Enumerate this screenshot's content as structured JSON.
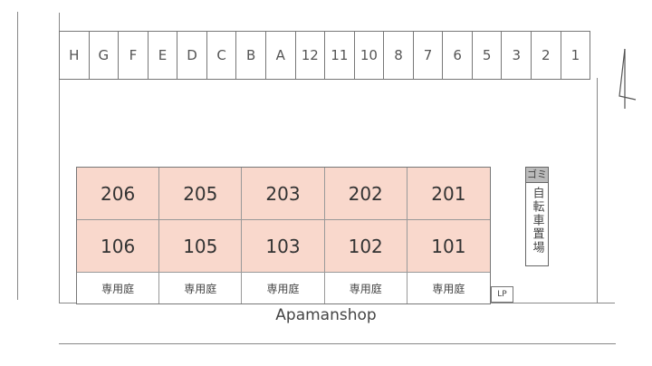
{
  "parking": [
    "H",
    "G",
    "F",
    "E",
    "D",
    "C",
    "B",
    "A",
    "12",
    "11",
    "10",
    "8",
    "7",
    "6",
    "5",
    "3",
    "2",
    "1"
  ],
  "units_upper": [
    "206",
    "205",
    "203",
    "202",
    "201"
  ],
  "units_lower": [
    "106",
    "105",
    "103",
    "102",
    "101"
  ],
  "garden_label": "専用庭",
  "lp_label": "LP",
  "gomi_label": "ゴミ",
  "bike_label": "自転車置場",
  "brand": "Apamanshop",
  "colors": {
    "unit_fill": "#f9d8cc",
    "line": "#888888"
  },
  "north_arrow_icon": "north-arrow-icon"
}
